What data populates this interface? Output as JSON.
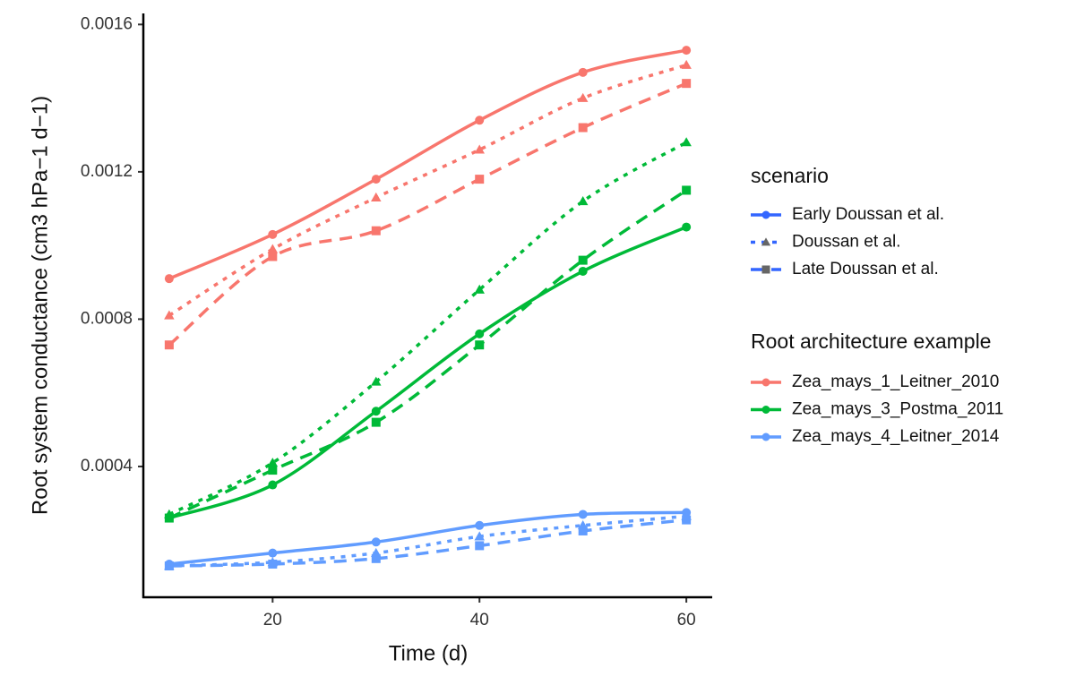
{
  "chart_data": {
    "type": "line",
    "x_label": "Time (d)",
    "y_label": "Root system conductance (cm3 hPa−1 d−1)",
    "x": [
      10,
      20,
      30,
      40,
      50,
      60
    ],
    "xlim": [
      7.5,
      62.5
    ],
    "xticks": [
      20,
      40,
      60
    ],
    "ylim": [
      4.5e-05,
      0.00163
    ],
    "yticks": [
      0.0004,
      0.0008,
      0.0012,
      0.0016
    ],
    "scenario_legend": {
      "title": "scenario",
      "key_color": "#3366FF",
      "items": [
        {
          "name": "Early Doussan et al.",
          "shape": "circle",
          "linetype": "solid"
        },
        {
          "name": "Doussan et al.",
          "shape": "triangle",
          "linetype": "dotted"
        },
        {
          "name": "Late Doussan et al.",
          "shape": "square",
          "linetype": "dashed"
        }
      ]
    },
    "series_legend_title": "Root architecture example",
    "series": [
      {
        "name": "Zea_mays_1_Leitner_2010",
        "color": "#F8766D",
        "by_scenario": [
          [
            0.00091,
            0.00103,
            0.00118,
            0.00134,
            0.00147,
            0.00153
          ],
          [
            0.00081,
            0.00099,
            0.00113,
            0.00126,
            0.0014,
            0.00149
          ],
          [
            0.00073,
            0.00097,
            0.00104,
            0.00118,
            0.00132,
            0.00144
          ]
        ]
      },
      {
        "name": "Zea_mays_3_Postma_2011",
        "color": "#00BA38",
        "by_scenario": [
          [
            0.00026,
            0.00035,
            0.00055,
            0.00076,
            0.00093,
            0.00105
          ],
          [
            0.00027,
            0.00041,
            0.00063,
            0.00088,
            0.00112,
            0.00128
          ],
          [
            0.00026,
            0.00039,
            0.00052,
            0.00073,
            0.00096,
            0.00115
          ]
        ]
      },
      {
        "name": "Zea_mays_4_Leitner_2014",
        "color": "#619CFF",
        "by_scenario": [
          [
            0.000135,
            0.000165,
            0.000195,
            0.00024,
            0.00027,
            0.000275
          ],
          [
            0.00013,
            0.00014,
            0.000165,
            0.00021,
            0.00024,
            0.000265
          ],
          [
            0.00013,
            0.000135,
            0.00015,
            0.000185,
            0.000225,
            0.000255
          ]
        ]
      }
    ]
  }
}
